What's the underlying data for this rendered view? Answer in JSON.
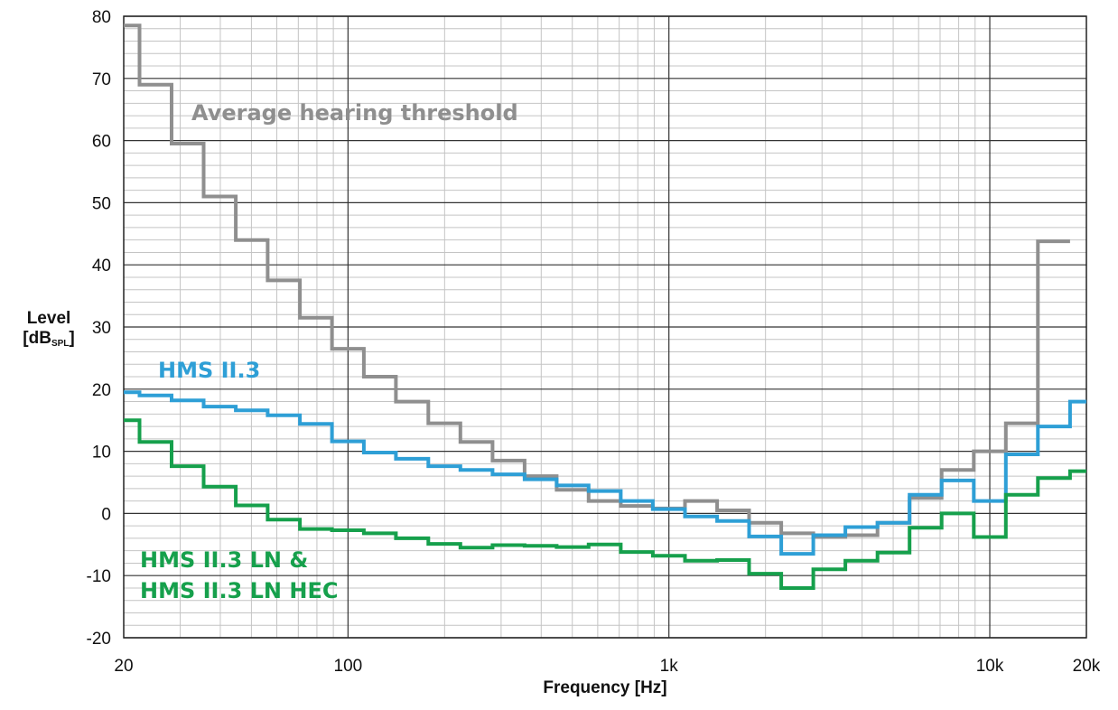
{
  "chart_data": {
    "type": "line",
    "step": true,
    "xscale": "log",
    "xlim": [
      20,
      20000
    ],
    "ylim": [
      -20,
      80
    ],
    "grid": true,
    "xlabel": "Frequency [Hz]",
    "ylabel": {
      "main": "Level",
      "unit_open": "[dB",
      "unit_sub": "SPL",
      "unit_close": "]"
    },
    "x_ticks": [
      {
        "value": 20,
        "label": "20"
      },
      {
        "value": 100,
        "label": "100"
      },
      {
        "value": 1000,
        "label": "1k"
      },
      {
        "value": 10000,
        "label": "10k"
      },
      {
        "value": 20000,
        "label": "20k"
      }
    ],
    "y_ticks": [
      -20,
      -10,
      0,
      10,
      20,
      30,
      40,
      50,
      60,
      70,
      80
    ],
    "band_edges": [
      20,
      22.4,
      28.2,
      35.5,
      44.7,
      56.2,
      70.8,
      89.1,
      112,
      141,
      178,
      224,
      282,
      355,
      447,
      562,
      708,
      891,
      1122,
      1413,
      1778,
      2239,
      2818,
      3548,
      4467,
      5623,
      7079,
      8913,
      11220,
      14125,
      17783,
      20000
    ],
    "series": [
      {
        "name": "Average hearing threshold",
        "color": "#8f8f8f",
        "end_x": 17783,
        "values": [
          78.5,
          69,
          59.5,
          51,
          44,
          37.5,
          31.5,
          26.5,
          22,
          18,
          14.5,
          11.5,
          8.5,
          6,
          3.8,
          2,
          1.2,
          0.8,
          2,
          0.5,
          -1.5,
          -3.2,
          -3.8,
          -3.5,
          -1.5,
          2.5,
          7,
          10,
          14.5,
          43.8
        ]
      },
      {
        "name": "HMS II.3",
        "color": "#2e9fd6",
        "values": [
          19.5,
          19,
          18.2,
          17.2,
          16.6,
          15.8,
          14.4,
          11.6,
          9.8,
          8.8,
          7.6,
          7,
          6.3,
          5.5,
          4.5,
          3.6,
          2,
          0.7,
          -0.5,
          -1.2,
          -3.7,
          -6.5,
          -3.5,
          -2.2,
          -1.5,
          3,
          5.3,
          2,
          9.5,
          14,
          18
        ]
      },
      {
        "name": "HMS II.3 LN & HMS II.3 LN HEC",
        "label_lines": [
          "HMS II.3 LN &",
          "HMS II.3 LN HEC"
        ],
        "color": "#16a04c",
        "values": [
          15,
          11.5,
          7.6,
          4.3,
          1.3,
          -1,
          -2.5,
          -2.7,
          -3.2,
          -4,
          -4.9,
          -5.5,
          -5.1,
          -5.2,
          -5.4,
          -5,
          -6.2,
          -6.8,
          -7.6,
          -7.5,
          -9.7,
          -12,
          -9,
          -7.6,
          -6.3,
          -2.3,
          0,
          -3.8,
          3,
          5.7,
          6.8
        ]
      }
    ]
  }
}
